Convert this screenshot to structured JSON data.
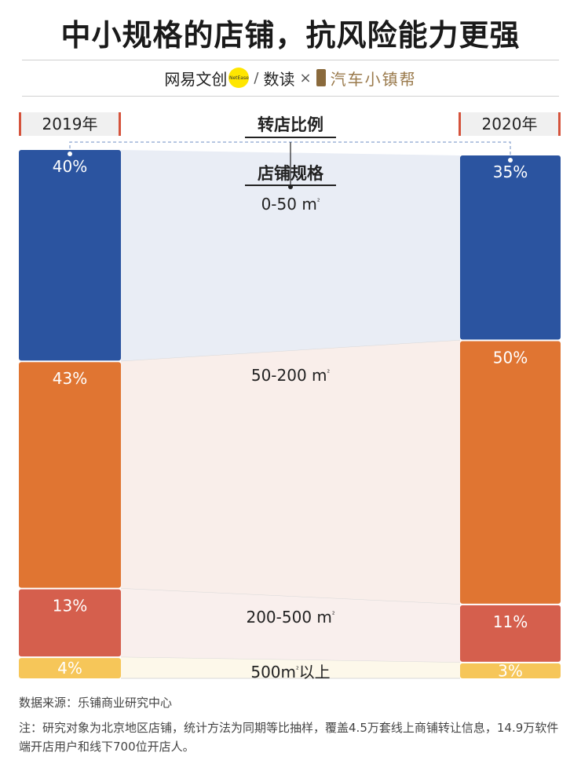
{
  "title": "中小规格的店铺，抗风险能力更强",
  "brand": {
    "left": "网易文创",
    "dot": "NetEase",
    "slash": "/",
    "mid": "数读",
    "cross": "×",
    "right": "汽车小镇",
    "right_suffix": "帮"
  },
  "header": {
    "left_year": "2019年",
    "right_year": "2020年",
    "center_title": "转店比例",
    "sub_title": "店铺规格"
  },
  "chart_data": {
    "type": "bar",
    "subtype": "stacked-100-percent-two-columns",
    "categories": [
      "2019年",
      "2020年"
    ],
    "series": [
      {
        "name": "0-50 m²",
        "label_text": "0-50 m",
        "values": [
          40,
          35
        ],
        "labels": [
          "40%",
          "35%"
        ],
        "color": "#2b54a0",
        "band_color": "#e9edf5"
      },
      {
        "name": "50-200 m²",
        "label_text": "50-200 m",
        "values": [
          43,
          50
        ],
        "labels": [
          "43%",
          "50%"
        ],
        "color": "#e07532",
        "band_color": "#f9eeea"
      },
      {
        "name": "200-500 m²",
        "label_text": "200-500 m",
        "values": [
          13,
          11
        ],
        "labels": [
          "13%",
          "11%"
        ],
        "color": "#d55f4d",
        "band_color": "#f9efed"
      },
      {
        "name": "500m²以上",
        "label_text": "500m",
        "label_suffix": "以上",
        "values": [
          4,
          3
        ],
        "labels": [
          "4%",
          "3%"
        ],
        "color": "#f6c659",
        "band_color": "#fdf8ea"
      }
    ]
  },
  "footer": {
    "source": "数据来源：乐铺商业研究中心",
    "note": "注：研究对象为北京地区店铺，统计方法为同期等比抽样，覆盖4.5万套线上商铺转让信息，14.9万软件端开店用户和线下700位开店人。"
  }
}
